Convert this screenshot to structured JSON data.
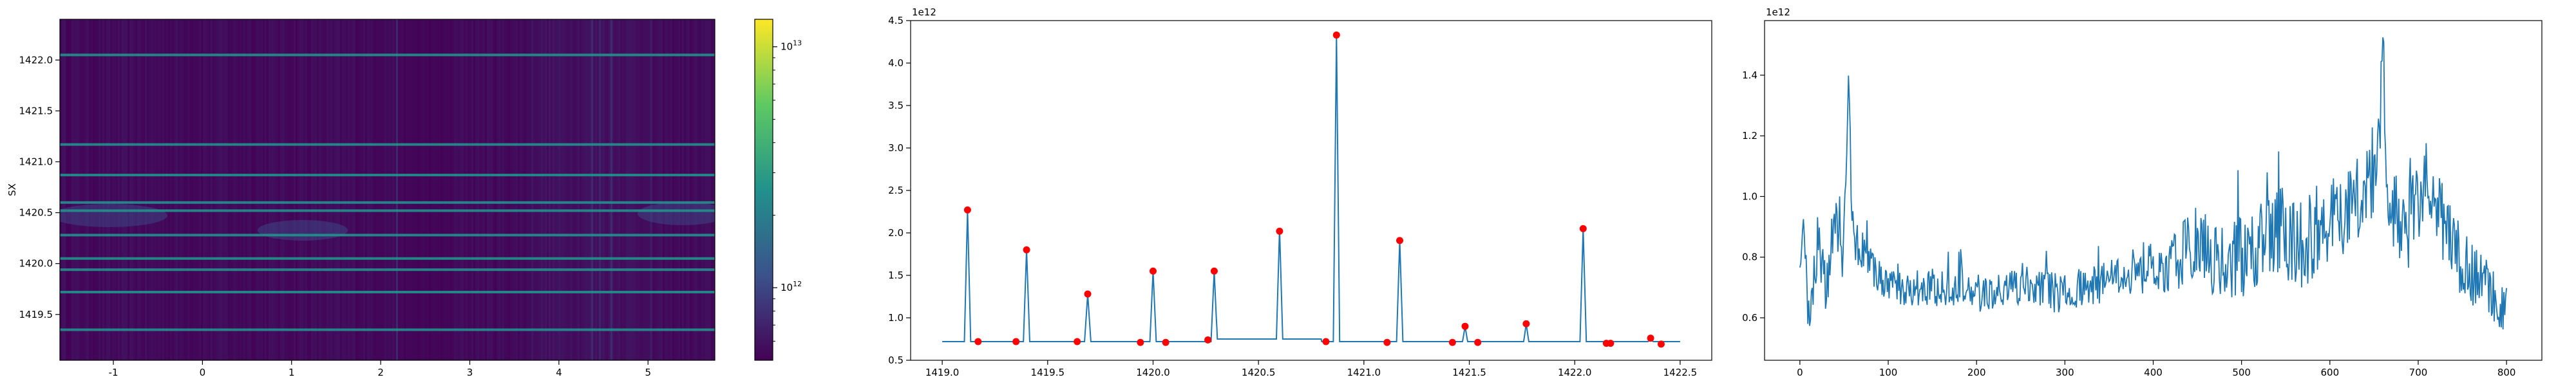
{
  "colors": {
    "line": "#1f77b4",
    "marker": "#ff0000",
    "heatmap_base": "#440154",
    "heatmap_mid": "#3b528b",
    "heatmap_teal": "#21918c",
    "heatmap_green": "#5ec962",
    "heatmap_yellow": "#fde725"
  },
  "chart_data": [
    {
      "type": "heatmap",
      "ylabel": "SX",
      "xlim": [
        -1.6,
        5.75
      ],
      "ylim": [
        1419.05,
        1422.4
      ],
      "xticks": [
        "-1",
        "0",
        "1",
        "2",
        "3",
        "4",
        "5"
      ],
      "xtick_values": [
        -1,
        0,
        1,
        2,
        3,
        4,
        5
      ],
      "yticks": [
        "1419.5",
        "1420.0",
        "1420.5",
        "1421.0",
        "1421.5",
        "1422.0"
      ],
      "ytick_values": [
        1419.5,
        1420.0,
        1420.5,
        1421.0,
        1421.5,
        1422.0
      ],
      "horizontal_lines_y": [
        1419.35,
        1419.72,
        1419.94,
        1420.05,
        1420.28,
        1420.52,
        1420.6,
        1420.87,
        1421.17,
        1422.05
      ],
      "colorbar": {
        "scale": "log",
        "ticks": [
          "10^13",
          "10^12"
        ],
        "tick_values": [
          10000000000000.0,
          1000000000000.0
        ],
        "range": [
          500000000000.0,
          13000000000000.0
        ]
      }
    },
    {
      "type": "line",
      "offset_label": "1e12",
      "xlim": [
        1418.85,
        1422.65
      ],
      "ylim": [
        0.5,
        4.5
      ],
      "xticks": [
        "1419.0",
        "1419.5",
        "1420.0",
        "1420.5",
        "1421.0",
        "1421.5",
        "1422.0",
        "1422.5"
      ],
      "xtick_values": [
        1419.0,
        1419.5,
        1420.0,
        1420.5,
        1421.0,
        1421.5,
        1422.0,
        1422.5
      ],
      "yticks": [
        "0.5",
        "1.0",
        "1.5",
        "2.0",
        "2.5",
        "3.0",
        "3.5",
        "4.0",
        "4.5"
      ],
      "ytick_values": [
        0.5,
        1.0,
        1.5,
        2.0,
        2.5,
        3.0,
        3.5,
        4.0,
        4.5
      ],
      "baseline": 0.72,
      "x_start": 1419.0,
      "x_end": 1422.5,
      "peaks": [
        {
          "x": 1419.12,
          "y": 2.27,
          "w": 0.015
        },
        {
          "x": 1419.4,
          "y": 1.8,
          "w": 0.015
        },
        {
          "x": 1419.69,
          "y": 1.28,
          "w": 0.015
        },
        {
          "x": 1420.0,
          "y": 1.55,
          "w": 0.015
        },
        {
          "x": 1420.29,
          "y": 1.55,
          "w": 0.015
        },
        {
          "x": 1420.6,
          "y": 2.02,
          "w": 0.015
        },
        {
          "x": 1420.87,
          "y": 4.33,
          "w": 0.015
        },
        {
          "x": 1421.17,
          "y": 1.91,
          "w": 0.015
        },
        {
          "x": 1421.48,
          "y": 0.9,
          "w": 0.012
        },
        {
          "x": 1421.77,
          "y": 0.93,
          "w": 0.012
        },
        {
          "x": 1422.04,
          "y": 2.05,
          "w": 0.015
        },
        {
          "x": 1422.36,
          "y": 0.76,
          "w": 0.012
        }
      ],
      "points": [
        {
          "x": 1419.12,
          "y": 2.27
        },
        {
          "x": 1419.17,
          "y": 0.72
        },
        {
          "x": 1419.35,
          "y": 0.72
        },
        {
          "x": 1419.4,
          "y": 1.8
        },
        {
          "x": 1419.64,
          "y": 0.72
        },
        {
          "x": 1419.69,
          "y": 1.28
        },
        {
          "x": 1419.94,
          "y": 0.71
        },
        {
          "x": 1420.0,
          "y": 1.55
        },
        {
          "x": 1420.06,
          "y": 0.71
        },
        {
          "x": 1420.26,
          "y": 0.74
        },
        {
          "x": 1420.29,
          "y": 1.55
        },
        {
          "x": 1420.6,
          "y": 2.02
        },
        {
          "x": 1420.82,
          "y": 0.72
        },
        {
          "x": 1420.87,
          "y": 4.33
        },
        {
          "x": 1421.11,
          "y": 0.71
        },
        {
          "x": 1421.17,
          "y": 1.91
        },
        {
          "x": 1421.42,
          "y": 0.71
        },
        {
          "x": 1421.48,
          "y": 0.9
        },
        {
          "x": 1421.54,
          "y": 0.71
        },
        {
          "x": 1421.77,
          "y": 0.93
        },
        {
          "x": 1422.04,
          "y": 2.05
        },
        {
          "x": 1422.15,
          "y": 0.7
        },
        {
          "x": 1422.17,
          "y": 0.7
        },
        {
          "x": 1422.36,
          "y": 0.76
        },
        {
          "x": 1422.41,
          "y": 0.69
        }
      ]
    },
    {
      "type": "line",
      "offset_label": "1e12",
      "xlim": [
        -40,
        840
      ],
      "ylim": [
        0.46,
        1.58
      ],
      "xticks": [
        "0",
        "100",
        "200",
        "300",
        "400",
        "500",
        "600",
        "700",
        "800"
      ],
      "xtick_values": [
        0,
        100,
        200,
        300,
        400,
        500,
        600,
        700,
        800
      ],
      "yticks": [
        "0.6",
        "0.8",
        "1.0",
        "1.2",
        "1.4"
      ],
      "ytick_values": [
        0.6,
        0.8,
        1.0,
        1.2,
        1.4
      ],
      "n_points": 801,
      "anchors": [
        {
          "x": 0,
          "y": 0.72
        },
        {
          "x": 5,
          "y": 0.9
        },
        {
          "x": 10,
          "y": 0.62
        },
        {
          "x": 20,
          "y": 0.85
        },
        {
          "x": 30,
          "y": 0.7
        },
        {
          "x": 40,
          "y": 0.95
        },
        {
          "x": 48,
          "y": 0.78
        },
        {
          "x": 55,
          "y": 1.34
        },
        {
          "x": 60,
          "y": 0.88
        },
        {
          "x": 70,
          "y": 0.82
        },
        {
          "x": 85,
          "y": 0.75
        },
        {
          "x": 100,
          "y": 0.7
        },
        {
          "x": 150,
          "y": 0.7
        },
        {
          "x": 200,
          "y": 0.68
        },
        {
          "x": 250,
          "y": 0.7
        },
        {
          "x": 300,
          "y": 0.68
        },
        {
          "x": 350,
          "y": 0.72
        },
        {
          "x": 380,
          "y": 0.76
        },
        {
          "x": 420,
          "y": 0.78
        },
        {
          "x": 450,
          "y": 0.85
        },
        {
          "x": 480,
          "y": 0.76
        },
        {
          "x": 510,
          "y": 0.82
        },
        {
          "x": 540,
          "y": 0.88
        },
        {
          "x": 570,
          "y": 0.84
        },
        {
          "x": 600,
          "y": 0.92
        },
        {
          "x": 630,
          "y": 1.0
        },
        {
          "x": 655,
          "y": 1.12
        },
        {
          "x": 660,
          "y": 1.55
        },
        {
          "x": 665,
          "y": 1.0
        },
        {
          "x": 690,
          "y": 0.9
        },
        {
          "x": 710,
          "y": 1.05
        },
        {
          "x": 740,
          "y": 0.82
        },
        {
          "x": 770,
          "y": 0.72
        },
        {
          "x": 800,
          "y": 0.62
        }
      ],
      "noise_amplitudes": [
        {
          "x": 0,
          "a": 0.1
        },
        {
          "x": 100,
          "a": 0.06
        },
        {
          "x": 350,
          "a": 0.07
        },
        {
          "x": 450,
          "a": 0.12
        },
        {
          "x": 550,
          "a": 0.16
        },
        {
          "x": 700,
          "a": 0.15
        },
        {
          "x": 800,
          "a": 0.08
        }
      ]
    }
  ]
}
